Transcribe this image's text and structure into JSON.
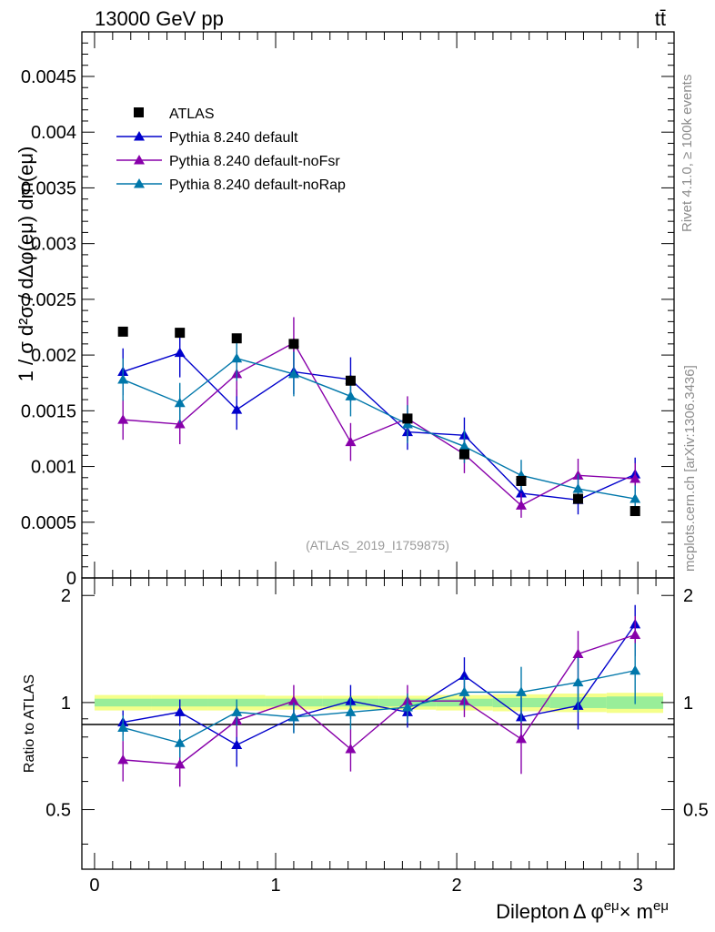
{
  "header": {
    "left": "13000 GeV pp",
    "right": "tt̄"
  },
  "side_labels": {
    "rivet": "Rivet 4.1.0, ≥ 100k events",
    "mcplots": "mcplots.cern.ch [arXiv:1306.3436]"
  },
  "colors": {
    "atlas": "#000000",
    "default": "#0000cc",
    "noFsr": "#8800aa",
    "noRap": "#0077aa",
    "band_outer": "#f5ff8a",
    "band_inner": "#99ee99"
  },
  "chart_data": [
    {
      "type": "scatter",
      "title": "",
      "analysis_id": "(ATLAS_2019_I1759875)",
      "ylabel": "1 / σ  d²σ / dΔφ(eμ) dm(eμ)",
      "ylim": [
        0,
        0.0049
      ],
      "yticks": [
        0,
        0.0005,
        0.001,
        0.0015,
        0.002,
        0.0025,
        0.003,
        0.0035,
        0.004,
        0.0045
      ],
      "ytick_labels": [
        "0",
        "0.0005",
        "0.001",
        "0.0015",
        "0.002",
        "0.0025",
        "0.003",
        "0.0035",
        "0.004",
        "0.0045"
      ],
      "xlim": [
        -0.07,
        3.2
      ],
      "x": [
        0.157,
        0.471,
        0.785,
        1.1,
        1.414,
        1.728,
        2.042,
        2.356,
        2.67,
        2.985
      ],
      "legend": [
        "ATLAS",
        "Pythia 8.240 default",
        "Pythia 8.240 default-noFsr",
        "Pythia 8.240 default-noRap"
      ],
      "series": [
        {
          "name": "ATLAS",
          "style": "square",
          "color_key": "atlas",
          "values": [
            0.00221,
            0.0022,
            0.00215,
            0.0021,
            0.00177,
            0.00143,
            0.00111,
            0.00087,
            0.00071,
            0.0006
          ],
          "errors": [
            0,
            0,
            0,
            0,
            0,
            0,
            0,
            0,
            0,
            0
          ]
        },
        {
          "name": "Pythia 8.240 default",
          "style": "triangle",
          "color_key": "default",
          "values": [
            0.00185,
            0.00202,
            0.00151,
            0.00185,
            0.00178,
            0.00131,
            0.00128,
            0.00076,
            0.0007,
            0.00093
          ],
          "errors": [
            0.00021,
            0.00022,
            0.00018,
            0.0002,
            0.0002,
            0.00016,
            0.00016,
            0.00014,
            0.00013,
            0.00015
          ]
        },
        {
          "name": "Pythia 8.240 default-noFsr",
          "style": "triangle",
          "color_key": "noFsr",
          "values": [
            0.00142,
            0.00138,
            0.00183,
            0.00211,
            0.00122,
            0.00143,
            0.00111,
            0.00065,
            0.00092,
            0.00089
          ],
          "errors": [
            0.00018,
            0.00018,
            0.0002,
            0.00023,
            0.00017,
            0.0002,
            0.00017,
            0.00011,
            0.00015,
            0.00014
          ]
        },
        {
          "name": "Pythia 8.240 default-noRap",
          "style": "triangle",
          "color_key": "noRap",
          "values": [
            0.00178,
            0.00157,
            0.00197,
            0.00183,
            0.00163,
            0.00138,
            0.00118,
            0.00092,
            0.0008,
            0.00071
          ],
          "errors": [
            0.00019,
            0.00018,
            0.0002,
            0.0002,
            0.00018,
            0.00017,
            0.00015,
            0.00014,
            0.00013,
            0.00012
          ]
        }
      ]
    },
    {
      "type": "scatter",
      "title": "",
      "ylabel": "Ratio to ATLAS",
      "xlabel": "Dilepton Δ φ^eμ × m^eμ",
      "xlabel_main": "Dilepton",
      "xlabel_delta": "Δ φ",
      "xlabel_sup1": "eμ",
      "xlabel_times": "× m",
      "xlabel_sup2": "eμ",
      "ylim": [
        0.34,
        2.24
      ],
      "yticks": [
        0.5,
        1,
        2
      ],
      "ytick_labels": [
        "0.5",
        "1",
        "2"
      ],
      "xlim": [
        -0.07,
        3.2
      ],
      "xticks": [
        0,
        1,
        2,
        3
      ],
      "xtick_labels": [
        "0",
        "1",
        "2",
        "3"
      ],
      "x": [
        0.157,
        0.471,
        0.785,
        1.1,
        1.414,
        1.728,
        2.042,
        2.356,
        2.67,
        2.985
      ],
      "band_outer": [
        0.05,
        0.05,
        0.05,
        0.045,
        0.045,
        0.045,
        0.05,
        0.055,
        0.06,
        0.065
      ],
      "band_inner": [
        0.025,
        0.025,
        0.025,
        0.025,
        0.025,
        0.025,
        0.025,
        0.03,
        0.035,
        0.04
      ],
      "series": [
        {
          "name": "Pythia 8.240 default",
          "color_key": "default",
          "values": [
            0.88,
            0.94,
            0.76,
            0.91,
            1.01,
            0.94,
            1.19,
            0.91,
            0.98,
            1.66
          ],
          "errors": [
            0.07,
            0.08,
            0.1,
            0.09,
            0.11,
            0.09,
            0.15,
            0.13,
            0.14,
            0.22
          ]
        },
        {
          "name": "Pythia 8.240 default-noFsr",
          "color_key": "noFsr",
          "values": [
            0.69,
            0.67,
            0.89,
            1.01,
            0.74,
            1.01,
            1.01,
            0.79,
            1.37,
            1.55
          ],
          "errors": [
            0.09,
            0.09,
            0.09,
            0.11,
            0.1,
            0.11,
            0.1,
            0.16,
            0.22,
            0.2
          ]
        },
        {
          "name": "Pythia 8.240 default-noRap",
          "color_key": "noRap",
          "values": [
            0.85,
            0.77,
            0.94,
            0.91,
            0.94,
            0.97,
            1.07,
            1.07,
            1.14,
            1.23
          ],
          "errors": [
            0.07,
            0.07,
            0.08,
            0.09,
            0.1,
            0.09,
            0.11,
            0.19,
            0.2,
            0.24
          ]
        }
      ]
    }
  ]
}
